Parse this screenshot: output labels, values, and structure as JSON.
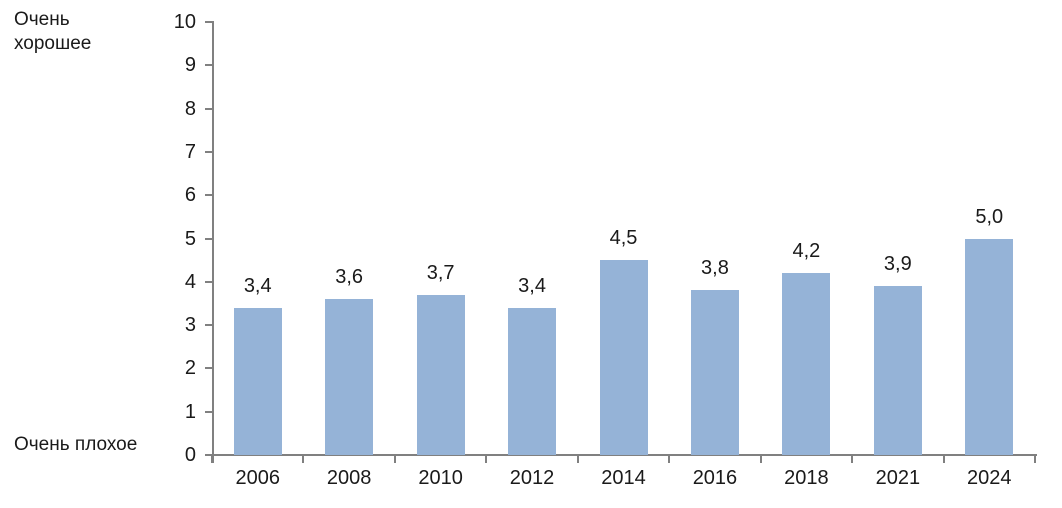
{
  "chart_data": {
    "type": "bar",
    "title": "",
    "categories": [
      "2006",
      "2008",
      "2010",
      "2012",
      "2014",
      "2016",
      "2018",
      "2021",
      "2024"
    ],
    "values": [
      3.4,
      3.6,
      3.7,
      3.4,
      4.5,
      3.8,
      4.2,
      3.9,
      5.0
    ],
    "value_labels": [
      "3,4",
      "3,6",
      "3,7",
      "3,4",
      "4,5",
      "3,8",
      "4,2",
      "3,9",
      "5,0"
    ],
    "xlabel": "",
    "ylabel": "",
    "ylim": [
      0,
      10
    ],
    "y_tick_step": 1,
    "y_tick_labels": [
      "0",
      "1",
      "2",
      "3",
      "4",
      "5",
      "6",
      "7",
      "8",
      "9",
      "10"
    ],
    "y_axis_top_label": "Очень хорошее",
    "y_axis_bottom_label": "Очень плохое",
    "grid": false,
    "legend": false,
    "colors": {
      "bar_fill": "#95B3D7",
      "axis": "#808080",
      "text": "#1A1A1A",
      "background": "#FFFFFF"
    }
  }
}
